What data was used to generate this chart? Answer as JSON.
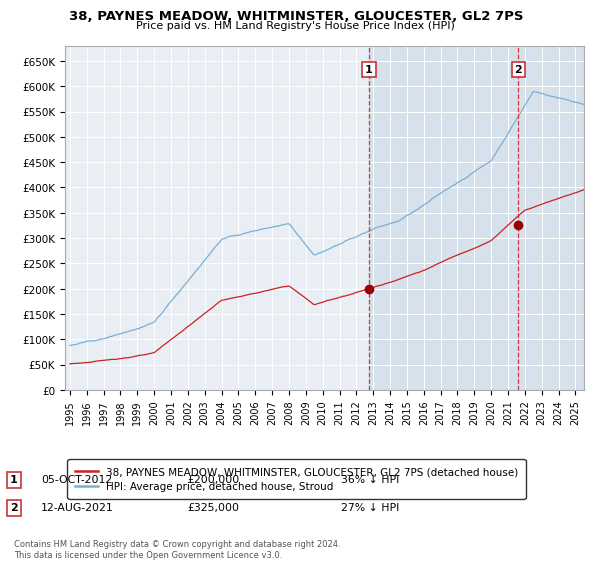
{
  "title": "38, PAYNES MEADOW, WHITMINSTER, GLOUCESTER, GL2 7PS",
  "subtitle": "Price paid vs. HM Land Registry's House Price Index (HPI)",
  "ylim": [
    0,
    680000
  ],
  "yticks": [
    0,
    50000,
    100000,
    150000,
    200000,
    250000,
    300000,
    350000,
    400000,
    450000,
    500000,
    550000,
    600000,
    650000
  ],
  "ytick_labels": [
    "£0",
    "£50K",
    "£100K",
    "£150K",
    "£200K",
    "£250K",
    "£300K",
    "£350K",
    "£400K",
    "£450K",
    "£500K",
    "£550K",
    "£600K",
    "£650K"
  ],
  "hpi_color": "#7BAFD4",
  "price_color": "#CC2222",
  "sale1_x": 2012.75,
  "sale1_y": 200000,
  "sale2_x": 2021.6,
  "sale2_y": 325000,
  "vline1_x": 2012.75,
  "vline2_x": 2021.6,
  "legend1": "38, PAYNES MEADOW, WHITMINSTER, GLOUCESTER, GL2 7PS (detached house)",
  "legend2": "HPI: Average price, detached house, Stroud",
  "annotation1_date": "05-OCT-2012",
  "annotation1_price": "£200,000",
  "annotation1_hpi": "36% ↓ HPI",
  "annotation2_date": "12-AUG-2021",
  "annotation2_price": "£325,000",
  "annotation2_hpi": "27% ↓ HPI",
  "footnote": "Contains HM Land Registry data © Crown copyright and database right 2024.\nThis data is licensed under the Open Government Licence v3.0.",
  "background_color": "#FFFFFF",
  "plot_bg_color": "#E8EEF4",
  "grid_color": "#FFFFFF",
  "shade_color": "#D0DCE8",
  "xlim_start": 1994.7,
  "xlim_end": 2025.5
}
